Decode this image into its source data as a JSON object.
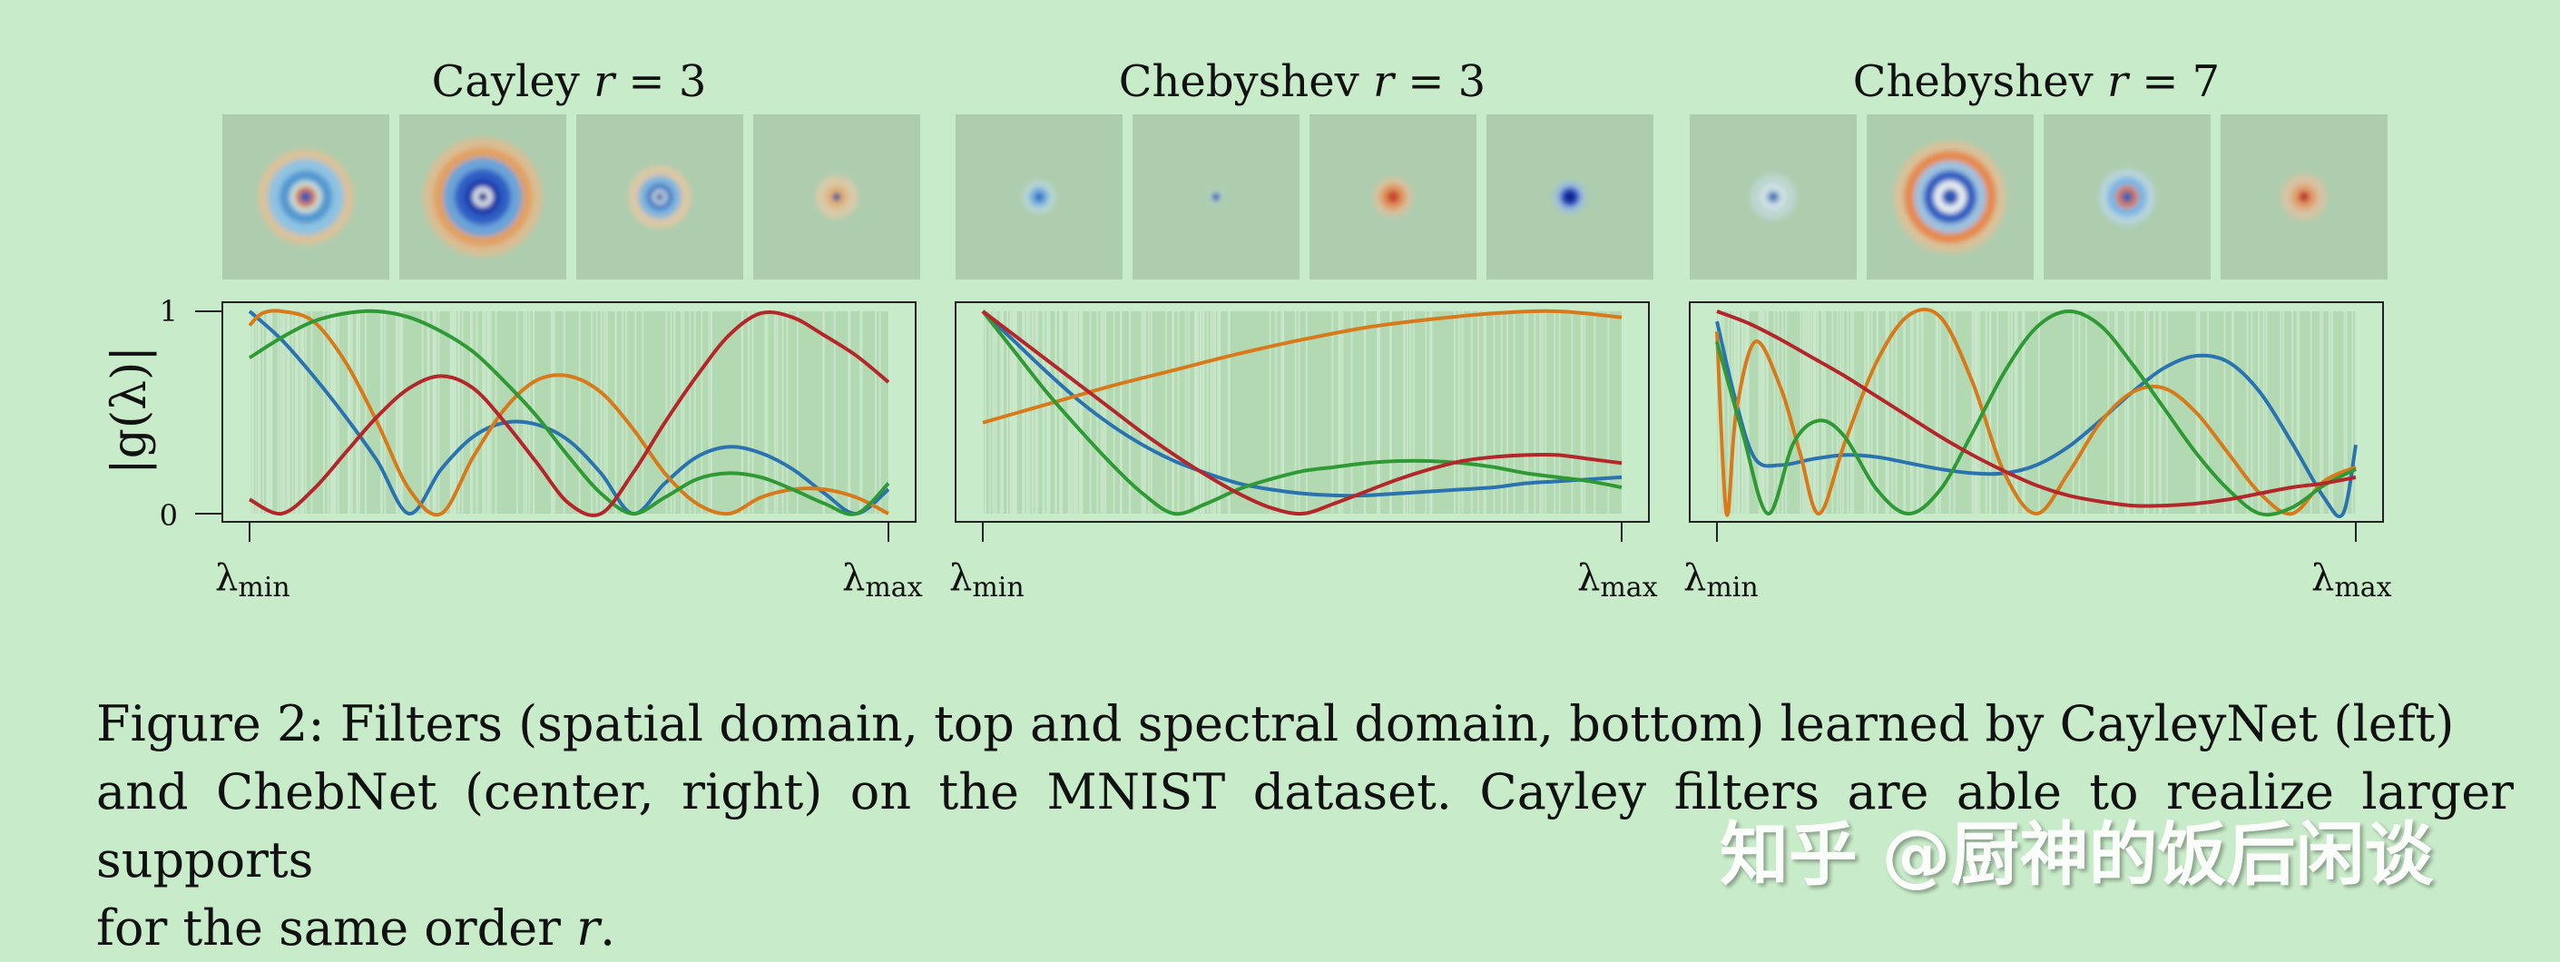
{
  "figure": {
    "panels": [
      {
        "title_prefix": "Cayley ",
        "title_var": "r",
        "title_suffix": " = 3"
      },
      {
        "title_prefix": "Chebyshev ",
        "title_var": "r",
        "title_suffix": " = 3"
      },
      {
        "title_prefix": "Chebyshev ",
        "title_var": "r",
        "title_suffix": " = 7"
      }
    ],
    "ylabel": "|g(λ)|",
    "ytick_labels": [
      "1",
      "0"
    ],
    "xtick_min_base": "λ",
    "xtick_min_sub": "min",
    "xtick_max_base": "λ",
    "xtick_max_sub": "max"
  },
  "colors": {
    "background": "#c8ecc9",
    "plot_fill": "#b3d9b3",
    "tile_fill": "#aecdae",
    "blue": "#2a73b0",
    "orange": "#d8791a",
    "green": "#2f9a35",
    "red": "#b3262a"
  },
  "chart_data": [
    {
      "type": "line",
      "title": "Cayley r = 3",
      "ylabel": "|g(λ)|",
      "xlim": [
        0,
        1
      ],
      "ylim": [
        0,
        1
      ],
      "series": [
        {
          "color": "blue",
          "x": [
            0,
            0.05,
            0.1,
            0.15,
            0.2,
            0.25,
            0.3,
            0.35,
            0.4,
            0.45,
            0.5,
            0.55,
            0.6,
            0.65,
            0.7,
            0.75,
            0.8,
            0.85,
            0.9,
            0.95,
            1.0
          ],
          "y": [
            1.0,
            0.86,
            0.68,
            0.48,
            0.26,
            0.0,
            0.22,
            0.38,
            0.45,
            0.44,
            0.36,
            0.2,
            0.0,
            0.15,
            0.28,
            0.33,
            0.3,
            0.22,
            0.1,
            0.0,
            0.12
          ]
        },
        {
          "color": "orange",
          "x": [
            0,
            0.02,
            0.05,
            0.1,
            0.15,
            0.2,
            0.25,
            0.3,
            0.35,
            0.4,
            0.45,
            0.5,
            0.55,
            0.6,
            0.65,
            0.7,
            0.75,
            0.8,
            0.85,
            0.9,
            0.95,
            1.0
          ],
          "y": [
            0.93,
            0.99,
            1.0,
            0.95,
            0.75,
            0.45,
            0.12,
            0.0,
            0.28,
            0.52,
            0.66,
            0.68,
            0.6,
            0.42,
            0.2,
            0.05,
            0.0,
            0.08,
            0.12,
            0.12,
            0.08,
            0.0
          ]
        },
        {
          "color": "green",
          "x": [
            0,
            0.05,
            0.1,
            0.15,
            0.2,
            0.25,
            0.3,
            0.35,
            0.4,
            0.45,
            0.5,
            0.55,
            0.6,
            0.65,
            0.7,
            0.75,
            0.8,
            0.85,
            0.9,
            0.95,
            1.0
          ],
          "y": [
            0.77,
            0.87,
            0.95,
            0.99,
            1.0,
            0.97,
            0.9,
            0.8,
            0.65,
            0.48,
            0.28,
            0.1,
            0.0,
            0.08,
            0.17,
            0.2,
            0.18,
            0.12,
            0.05,
            0.0,
            0.15
          ]
        },
        {
          "color": "red",
          "x": [
            0,
            0.05,
            0.1,
            0.15,
            0.2,
            0.25,
            0.3,
            0.35,
            0.4,
            0.45,
            0.5,
            0.55,
            0.6,
            0.65,
            0.7,
            0.75,
            0.8,
            0.85,
            0.9,
            0.95,
            1.0
          ],
          "y": [
            0.07,
            0.0,
            0.12,
            0.3,
            0.48,
            0.62,
            0.68,
            0.62,
            0.45,
            0.25,
            0.05,
            0.0,
            0.2,
            0.45,
            0.68,
            0.88,
            0.99,
            0.97,
            0.88,
            0.78,
            0.65
          ]
        }
      ]
    },
    {
      "type": "line",
      "title": "Chebyshev r = 3",
      "ylabel": "|g(λ)|",
      "xlim": [
        0,
        1
      ],
      "ylim": [
        0,
        1
      ],
      "series": [
        {
          "color": "blue",
          "x": [
            0,
            0.05,
            0.1,
            0.15,
            0.2,
            0.25,
            0.3,
            0.35,
            0.4,
            0.45,
            0.5,
            0.55,
            0.6,
            0.65,
            0.7,
            0.75,
            0.8,
            0.85,
            0.9,
            0.95,
            1.0
          ],
          "y": [
            1.0,
            0.85,
            0.7,
            0.56,
            0.44,
            0.34,
            0.26,
            0.2,
            0.15,
            0.12,
            0.1,
            0.09,
            0.09,
            0.1,
            0.11,
            0.12,
            0.13,
            0.15,
            0.16,
            0.17,
            0.18
          ]
        },
        {
          "color": "orange",
          "x": [
            0,
            0.1,
            0.2,
            0.3,
            0.4,
            0.5,
            0.6,
            0.7,
            0.8,
            0.9,
            1.0
          ],
          "y": [
            0.45,
            0.54,
            0.63,
            0.71,
            0.79,
            0.86,
            0.92,
            0.96,
            0.99,
            1.0,
            0.97
          ]
        },
        {
          "color": "green",
          "x": [
            0,
            0.05,
            0.1,
            0.15,
            0.2,
            0.25,
            0.3,
            0.35,
            0.4,
            0.45,
            0.5,
            0.55,
            0.6,
            0.65,
            0.7,
            0.75,
            0.8,
            0.85,
            0.9,
            0.95,
            1.0
          ],
          "y": [
            1.0,
            0.8,
            0.6,
            0.42,
            0.25,
            0.1,
            0.0,
            0.05,
            0.12,
            0.17,
            0.21,
            0.23,
            0.25,
            0.26,
            0.26,
            0.25,
            0.23,
            0.2,
            0.18,
            0.16,
            0.13
          ]
        },
        {
          "color": "red",
          "x": [
            0,
            0.05,
            0.1,
            0.15,
            0.2,
            0.25,
            0.3,
            0.35,
            0.4,
            0.45,
            0.5,
            0.55,
            0.6,
            0.65,
            0.7,
            0.75,
            0.8,
            0.85,
            0.9,
            0.95,
            1.0
          ],
          "y": [
            1.0,
            0.88,
            0.76,
            0.64,
            0.52,
            0.4,
            0.29,
            0.19,
            0.1,
            0.03,
            0.0,
            0.05,
            0.11,
            0.17,
            0.22,
            0.26,
            0.28,
            0.29,
            0.29,
            0.27,
            0.25
          ]
        }
      ]
    },
    {
      "type": "line",
      "title": "Chebyshev r = 7",
      "ylabel": "|g(λ)|",
      "xlim": [
        0,
        1
      ],
      "ylim": [
        0,
        1
      ],
      "series": [
        {
          "color": "blue",
          "x": [
            0,
            0.03,
            0.06,
            0.1,
            0.15,
            0.2,
            0.25,
            0.3,
            0.35,
            0.4,
            0.45,
            0.5,
            0.55,
            0.6,
            0.65,
            0.7,
            0.75,
            0.8,
            0.85,
            0.9,
            0.95,
            0.98,
            1.0
          ],
          "y": [
            0.95,
            0.55,
            0.27,
            0.24,
            0.27,
            0.29,
            0.28,
            0.25,
            0.22,
            0.2,
            0.2,
            0.24,
            0.33,
            0.46,
            0.6,
            0.72,
            0.78,
            0.75,
            0.6,
            0.35,
            0.08,
            0.0,
            0.34
          ]
        },
        {
          "color": "orange",
          "x": [
            0,
            0.015,
            0.03,
            0.06,
            0.1,
            0.13,
            0.16,
            0.2,
            0.25,
            0.3,
            0.35,
            0.4,
            0.45,
            0.5,
            0.55,
            0.6,
            0.65,
            0.7,
            0.75,
            0.8,
            0.85,
            0.9,
            0.95,
            1.0
          ],
          "y": [
            0.9,
            0.0,
            0.5,
            0.85,
            0.62,
            0.3,
            0.0,
            0.35,
            0.75,
            0.98,
            0.97,
            0.65,
            0.2,
            0.0,
            0.2,
            0.45,
            0.6,
            0.62,
            0.5,
            0.3,
            0.1,
            0.0,
            0.16,
            0.23
          ]
        },
        {
          "color": "green",
          "x": [
            0,
            0.04,
            0.08,
            0.12,
            0.16,
            0.2,
            0.25,
            0.3,
            0.35,
            0.4,
            0.45,
            0.5,
            0.55,
            0.6,
            0.65,
            0.7,
            0.75,
            0.8,
            0.85,
            0.9,
            0.95,
            1.0
          ],
          "y": [
            0.85,
            0.4,
            0.0,
            0.35,
            0.46,
            0.38,
            0.12,
            0.0,
            0.12,
            0.4,
            0.7,
            0.92,
            1.0,
            0.93,
            0.74,
            0.52,
            0.3,
            0.12,
            0.0,
            0.03,
            0.14,
            0.22
          ]
        },
        {
          "color": "red",
          "x": [
            0,
            0.05,
            0.1,
            0.15,
            0.2,
            0.25,
            0.3,
            0.35,
            0.4,
            0.45,
            0.5,
            0.55,
            0.6,
            0.65,
            0.7,
            0.75,
            0.8,
            0.85,
            0.9,
            0.95,
            1.0
          ],
          "y": [
            1.0,
            0.94,
            0.86,
            0.77,
            0.68,
            0.58,
            0.48,
            0.38,
            0.29,
            0.21,
            0.14,
            0.09,
            0.06,
            0.04,
            0.04,
            0.05,
            0.07,
            0.1,
            0.13,
            0.15,
            0.18
          ]
        }
      ]
    }
  ],
  "tiles": [
    [
      {
        "rings": [
          [
            "#d9c29a",
            0.58
          ],
          [
            "#8ec3e2",
            0.46
          ],
          [
            "#4f97cf",
            0.32
          ],
          [
            "#c8ded8",
            0.2
          ],
          [
            "#d87a3a",
            0.13
          ],
          [
            "#2a5cb8",
            0.07
          ]
        ]
      },
      {
        "rings": [
          [
            "#d9be94",
            0.72
          ],
          [
            "#e2a060",
            0.6
          ],
          [
            "#6aa4d8",
            0.48
          ],
          [
            "#2d5fc4",
            0.34
          ],
          [
            "#1a3aa8",
            0.22
          ],
          [
            "#e8eef0",
            0.12
          ],
          [
            "#1a2a90",
            0.06
          ]
        ]
      },
      {
        "rings": [
          [
            "#dcc8a4",
            0.38
          ],
          [
            "#7fb6de",
            0.26
          ],
          [
            "#3a74c2",
            0.16
          ],
          [
            "#d6e4e8",
            0.09
          ],
          [
            "#24489e",
            0.05
          ]
        ]
      },
      {
        "rings": [
          [
            "#d8caa8",
            0.26
          ],
          [
            "#e0b27a",
            0.14
          ],
          [
            "#1e3a9a",
            0.05
          ]
        ]
      }
    ],
    [
      {
        "rings": [
          [
            "#b7d6d2",
            0.2
          ],
          [
            "#6fb0e0",
            0.12
          ],
          [
            "#2a58b4",
            0.05
          ]
        ]
      },
      {
        "rings": [
          [
            "#b2d4c8",
            0.1
          ],
          [
            "#2a4fa8",
            0.05
          ]
        ]
      },
      {
        "rings": [
          [
            "#d6c2a0",
            0.24
          ],
          [
            "#e09860",
            0.16
          ],
          [
            "#c84a2a",
            0.08
          ]
        ]
      },
      {
        "rings": [
          [
            "#9ec0d8",
            0.2
          ],
          [
            "#2848c8",
            0.12
          ],
          [
            "#101a80",
            0.06
          ]
        ]
      }
    ],
    [
      {
        "rings": [
          [
            "#bcd6d0",
            0.28
          ],
          [
            "#d0e2e4",
            0.16
          ],
          [
            "#7aa8d0",
            0.08
          ],
          [
            "#3a4a9a",
            0.04
          ]
        ]
      },
      {
        "rings": [
          [
            "#d8c29a",
            0.68
          ],
          [
            "#e6884a",
            0.56
          ],
          [
            "#9cc2e0",
            0.44
          ],
          [
            "#2a5cc0",
            0.32
          ],
          [
            "#e6eef2",
            0.2
          ],
          [
            "#2b54b4",
            0.1
          ]
        ]
      },
      {
        "rings": [
          [
            "#b8d4dc",
            0.34
          ],
          [
            "#7ab6e4",
            0.24
          ],
          [
            "#d87a4a",
            0.14
          ],
          [
            "#3060b8",
            0.07
          ]
        ]
      },
      {
        "rings": [
          [
            "#d4c4a4",
            0.28
          ],
          [
            "#e2a070",
            0.16
          ],
          [
            "#c03a2a",
            0.07
          ]
        ]
      }
    ]
  ],
  "caption": {
    "line1": "Figure 2: Filters (spatial domain, top and spectral domain, bottom) learned by CayleyNet (left)",
    "line2": "and ChebNet (center, right) on the MNIST dataset. Cayley filters are able to realize larger supports",
    "line3_prefix": "for the same order ",
    "line3_var": "r",
    "line3_suffix": "."
  },
  "watermark": "知乎 @厨神的饭后闲谈"
}
